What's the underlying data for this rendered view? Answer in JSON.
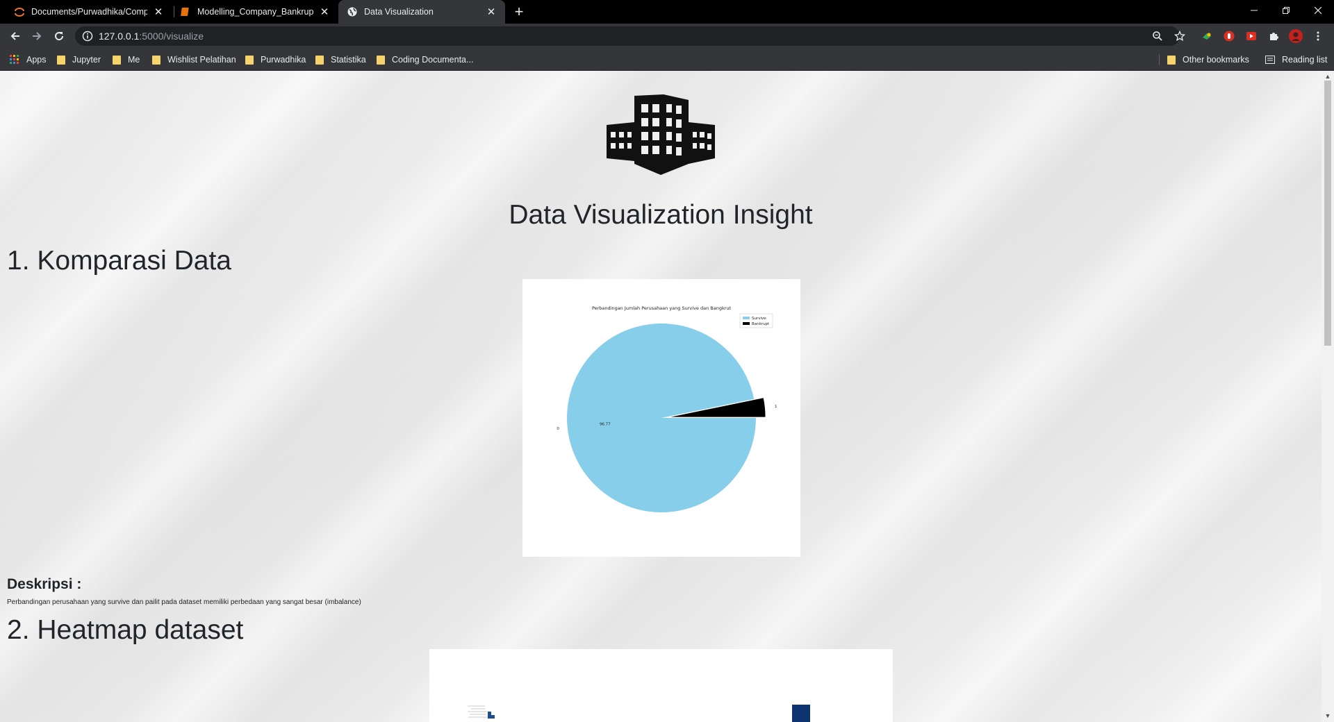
{
  "browser": {
    "tabs": [
      {
        "title": "Documents/Purwadhika/Compan",
        "favicon": "jupyter-icon"
      },
      {
        "title": "Modelling_Company_Bankruptcy",
        "favicon": "notebook-icon"
      },
      {
        "title": "Data Visualization",
        "favicon": "globe-icon"
      }
    ],
    "url_host": "127.0.0.1",
    "url_rest": ":5000/visualize",
    "bookmarks": [
      {
        "label": "Apps"
      },
      {
        "label": "Jupyter"
      },
      {
        "label": "Me"
      },
      {
        "label": "Wishlist Pelatihan"
      },
      {
        "label": "Purwadhika"
      },
      {
        "label": "Statistika"
      },
      {
        "label": "Coding Documenta..."
      }
    ],
    "other_bookmarks": "Other bookmarks",
    "reading_list": "Reading list"
  },
  "page": {
    "title": "Data Visualization Insight",
    "section1_title": "1. Komparasi Data",
    "description_heading": "Deskripsi :",
    "description_text": "Perbandingan perusahaan yang survive dan pailit pada dataset memiliki perbedaan yang sangat besar (imbalance)",
    "section2_title": "2. Heatmap dataset"
  },
  "chart_data": {
    "type": "pie",
    "title": "Perbandingan Jumlah Perusahaan yang Survive dan Bangkrut",
    "categories": [
      "0",
      "1"
    ],
    "legend": [
      "Survive",
      "Bankrupt"
    ],
    "values": [
      96.77,
      3.23
    ],
    "data_labels": [
      "96.77"
    ],
    "colors": [
      "#87ceeb",
      "#000000"
    ],
    "legend_position": "upper-right"
  }
}
